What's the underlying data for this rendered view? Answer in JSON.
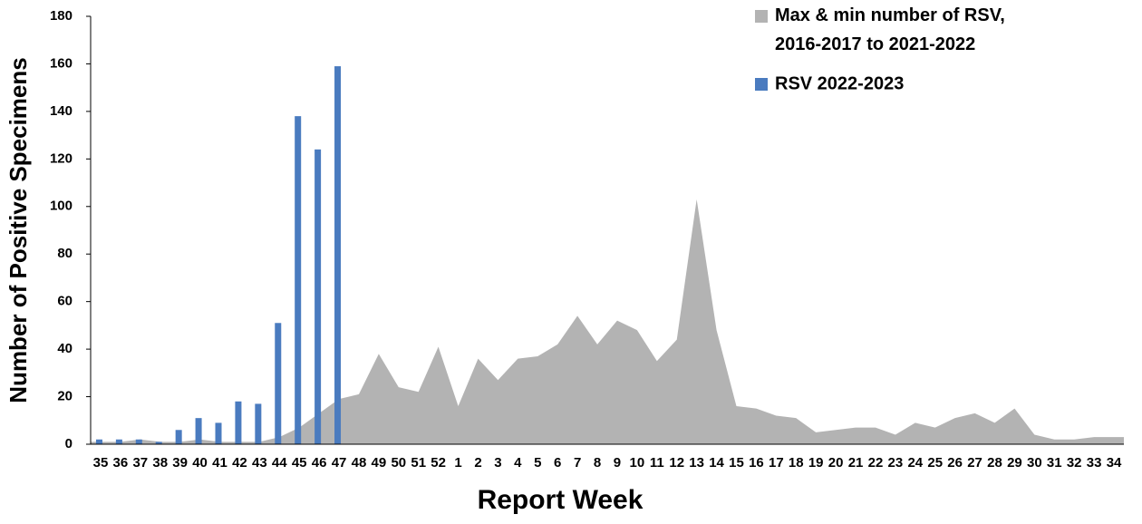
{
  "chart_data": {
    "type": "bar-area",
    "x_label": "Report Week",
    "y_label": "Number of Positive Specimens",
    "categories": [
      "35",
      "36",
      "37",
      "38",
      "39",
      "40",
      "41",
      "42",
      "43",
      "44",
      "45",
      "46",
      "47",
      "48",
      "49",
      "50",
      "51",
      "52",
      "1",
      "2",
      "3",
      "4",
      "5",
      "6",
      "7",
      "8",
      "9",
      "10",
      "11",
      "12",
      "13",
      "14",
      "15",
      "16",
      "17",
      "18",
      "19",
      "20",
      "21",
      "22",
      "23",
      "24",
      "25",
      "26",
      "27",
      "28",
      "29",
      "30",
      "31",
      "32",
      "33",
      "34"
    ],
    "series": [
      {
        "name": "Max & min number of RSV, 2016-2017 to 2021-2022",
        "kind": "area",
        "color": "#b3b3b3",
        "values": [
          1,
          1,
          2,
          1,
          1,
          2,
          1,
          1,
          1,
          3,
          7,
          13,
          19,
          21,
          38,
          24,
          22,
          41,
          16,
          36,
          27,
          36,
          37,
          42,
          54,
          42,
          52,
          48,
          35,
          44,
          103,
          48,
          16,
          15,
          12,
          11,
          5,
          6,
          7,
          7,
          4,
          9,
          7,
          11,
          13,
          9,
          15,
          4,
          2,
          2,
          3,
          3
        ]
      },
      {
        "name": "RSV 2022-2023",
        "kind": "bar",
        "color": "#4a7bbf",
        "values": [
          2,
          2,
          2,
          1,
          6,
          11,
          9,
          18,
          17,
          51,
          138,
          124,
          159,
          null,
          null,
          null,
          null,
          null,
          null,
          null,
          null,
          null,
          null,
          null,
          null,
          null,
          null,
          null,
          null,
          null,
          null,
          null,
          null,
          null,
          null,
          null,
          null,
          null,
          null,
          null,
          null,
          null,
          null,
          null,
          null,
          null,
          null,
          null,
          null,
          null,
          null,
          null
        ]
      }
    ],
    "ylim": [
      0,
      180
    ],
    "yticks": [
      0,
      20,
      40,
      60,
      80,
      100,
      120,
      140,
      160,
      180
    ],
    "legend": "top-right"
  }
}
